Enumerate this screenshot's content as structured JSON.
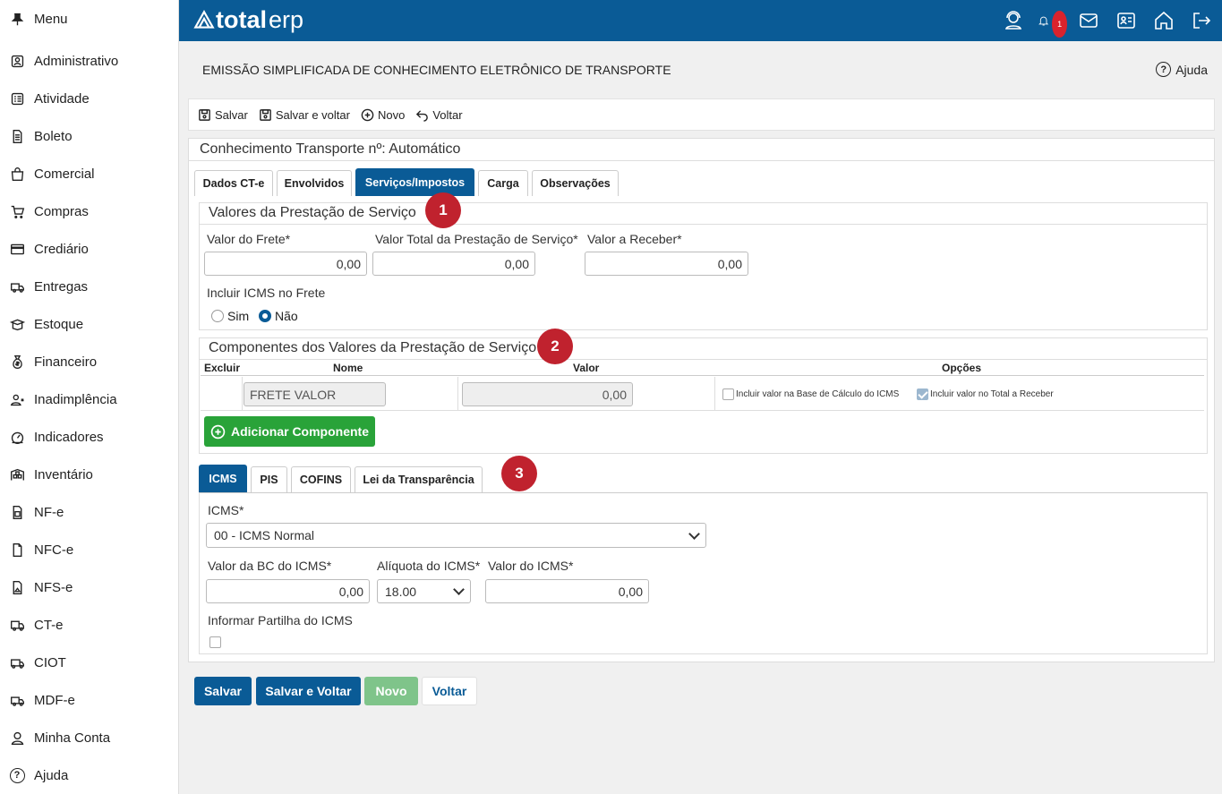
{
  "sidebar": {
    "items": [
      {
        "label": "Menu",
        "icon": "pin-icon"
      },
      {
        "label": "Administrativo",
        "icon": "badge-icon"
      },
      {
        "label": "Atividade",
        "icon": "list-icon"
      },
      {
        "label": "Boleto",
        "icon": "document-icon"
      },
      {
        "label": "Comercial",
        "icon": "bag-icon"
      },
      {
        "label": "Compras",
        "icon": "cart-icon"
      },
      {
        "label": "Crediário",
        "icon": "card-icon"
      },
      {
        "label": "Entregas",
        "icon": "truck-icon"
      },
      {
        "label": "Estoque",
        "icon": "box-icon"
      },
      {
        "label": "Financeiro",
        "icon": "money-bag-icon"
      },
      {
        "label": "Inadimplência",
        "icon": "user-x-icon"
      },
      {
        "label": "Indicadores",
        "icon": "gauge-icon"
      },
      {
        "label": "Inventário",
        "icon": "warehouse-icon"
      },
      {
        "label": "NF-e",
        "icon": "invoice-icon"
      },
      {
        "label": "NFC-e",
        "icon": "file-icon"
      },
      {
        "label": "NFS-e",
        "icon": "file-image-icon"
      },
      {
        "label": "CT-e",
        "icon": "truck-icon"
      },
      {
        "label": "CIOT",
        "icon": "truck-icon"
      },
      {
        "label": "MDF-e",
        "icon": "truck-icon"
      },
      {
        "label": "Minha Conta",
        "icon": "user-icon"
      },
      {
        "label": "Ajuda",
        "icon": "help-icon"
      }
    ]
  },
  "header": {
    "logo_bold": "total",
    "logo_light": "erp",
    "notification_count": "1",
    "colors": {
      "primary": "#0a5b96",
      "success": "#29a339",
      "badge": "#c0222e"
    }
  },
  "page": {
    "title": "EMISSÃO SIMPLIFICADA DE CONHECIMENTO ELETRÔNICO DE TRANSPORTE",
    "help_label": "Ajuda"
  },
  "toolbar": {
    "save": "Salvar",
    "save_back": "Salvar e voltar",
    "new": "Novo",
    "back": "Voltar"
  },
  "cte": {
    "title": "Conhecimento Transporte nº: Automático"
  },
  "tabs": [
    {
      "label": "Dados CT-e",
      "active": false
    },
    {
      "label": "Envolvidos",
      "active": false
    },
    {
      "label": "Serviços/Impostos",
      "active": true
    },
    {
      "label": "Carga",
      "active": false
    },
    {
      "label": "Observações",
      "active": false
    }
  ],
  "valores": {
    "title": "Valores da Prestação de Serviço",
    "frete_label": "Valor do Frete*",
    "frete_value": "0,00",
    "total_label": "Valor Total da Prestação de Serviço*",
    "total_value": "0,00",
    "receber_label": "Valor a Receber*",
    "receber_value": "0,00",
    "incluir_icms_label": "Incluir ICMS no Frete",
    "opt_sim": "Sim",
    "opt_nao": "Não",
    "selected": "Não"
  },
  "componentes": {
    "title": "Componentes dos Valores da Prestação de Serviço",
    "headers": {
      "excluir": "Excluir",
      "nome": "Nome",
      "valor": "Valor",
      "opcoes": "Opções"
    },
    "row": {
      "nome": "FRETE VALOR",
      "valor": "0,00",
      "opt_base": "Incluir valor na Base de Cálculo do ICMS",
      "opt_base_checked": false,
      "opt_total": "Incluir valor no Total a Receber",
      "opt_total_checked": true
    },
    "add_label": "Adicionar Componente"
  },
  "imposto_tabs": [
    {
      "label": "ICMS",
      "active": true
    },
    {
      "label": "PIS",
      "active": false
    },
    {
      "label": "COFINS",
      "active": false
    },
    {
      "label": "Lei da Transparência",
      "active": false
    }
  ],
  "icms": {
    "label": "ICMS*",
    "selected": "00 - ICMS Normal",
    "bc_label": "Valor da BC do ICMS*",
    "bc_value": "0,00",
    "aliquota_label": "Alíquota do ICMS*",
    "aliquota_value": "18.00",
    "valor_label": "Valor do ICMS*",
    "valor_value": "0,00",
    "partilha_label": "Informar Partilha do ICMS",
    "partilha_checked": false
  },
  "badges": [
    "1",
    "2",
    "3"
  ],
  "bottom": {
    "save": "Salvar",
    "save_back": "Salvar e Voltar",
    "new": "Novo",
    "back": "Voltar"
  }
}
